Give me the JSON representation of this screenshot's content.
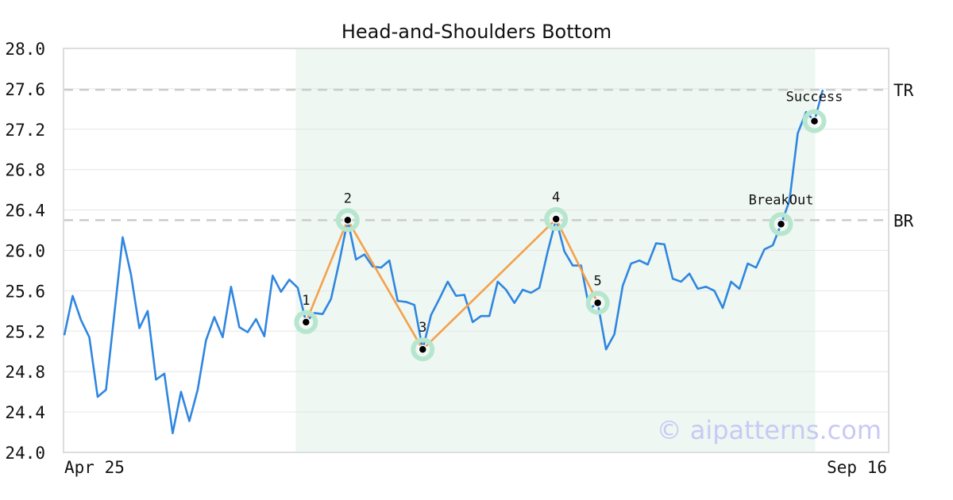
{
  "chart_data": {
    "type": "line",
    "title": "Head-and-Shoulders Bottom",
    "xlabel": "",
    "ylabel": "",
    "x_tick_labels": [
      "Apr 25",
      "Sep 16"
    ],
    "ylim": [
      24.0,
      28.0
    ],
    "y_ticks": [
      "24.0",
      "24.4",
      "24.8",
      "25.2",
      "25.6",
      "26.0",
      "26.4",
      "26.8",
      "27.2",
      "27.6",
      "28.0"
    ],
    "grid": true,
    "colors": {
      "price_line": "#2f86e0",
      "pattern_line": "#f5a04a",
      "highlight_band": "#eef7f2",
      "marker_halo": "#b7e6cf",
      "level_line": "#cccccc"
    },
    "series": [
      {
        "values": [
          25.16,
          25.55,
          25.31,
          25.14,
          24.55,
          24.62,
          25.37,
          26.13,
          25.76,
          25.23,
          25.4,
          24.72,
          24.78,
          24.19,
          24.6,
          24.31,
          24.62,
          25.11,
          25.34,
          25.14,
          25.64,
          25.24,
          25.19,
          25.32,
          25.15,
          25.75,
          25.59,
          25.71,
          25.63,
          25.29,
          25.38,
          25.37,
          25.52,
          25.89,
          26.3,
          25.91,
          25.96,
          25.84,
          25.83,
          25.9,
          25.5,
          25.49,
          25.46,
          25.02,
          25.36,
          25.52,
          25.69,
          25.55,
          25.56,
          25.29,
          25.35,
          25.35,
          25.69,
          25.61,
          25.48,
          25.61,
          25.58,
          25.63,
          25.99,
          26.31,
          25.99,
          25.85,
          25.85,
          25.42,
          25.48,
          25.02,
          25.17,
          25.65,
          25.87,
          25.9,
          25.86,
          26.07,
          26.06,
          25.72,
          25.69,
          25.77,
          25.62,
          25.64,
          25.6,
          25.43,
          25.69,
          25.62,
          25.87,
          25.83,
          26.01,
          26.05,
          26.26,
          26.49,
          27.16,
          27.37,
          27.28,
          27.59
        ]
      }
    ],
    "highlight_start_index": 27,
    "highlight_end_index": 90,
    "pattern_points": [
      {
        "label": "1",
        "index": 29,
        "value": 25.29
      },
      {
        "label": "2",
        "index": 34,
        "value": 26.3
      },
      {
        "label": "3",
        "index": 43,
        "value": 25.02
      },
      {
        "label": "4",
        "index": 59,
        "value": 26.31
      },
      {
        "label": "5",
        "index": 64,
        "value": 25.48
      }
    ],
    "event_points": [
      {
        "label": "BreakOut",
        "index": 86,
        "value": 26.26
      },
      {
        "label": "Success",
        "index": 90,
        "value": 27.28
      }
    ],
    "levels": [
      {
        "label": "TR",
        "value": 27.59
      },
      {
        "label": "BR",
        "value": 26.3
      }
    ],
    "watermark": "© aipatterns.com"
  }
}
